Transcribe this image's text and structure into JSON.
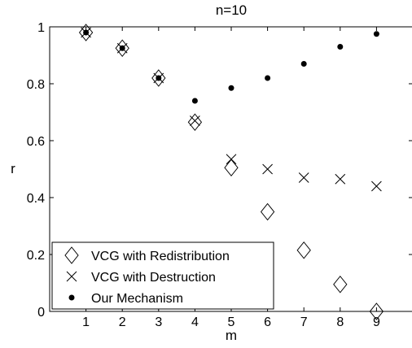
{
  "chart_data": {
    "type": "scatter",
    "title": "n=10",
    "xlabel": "m",
    "ylabel": "r",
    "xlim": [
      0,
      10
    ],
    "ylim": [
      0,
      1
    ],
    "xticks": [
      1,
      2,
      3,
      4,
      5,
      6,
      7,
      8,
      9
    ],
    "yticks": [
      0,
      0.2,
      0.4,
      0.6,
      0.8,
      1
    ],
    "ytick_labels": [
      "0",
      "0.2",
      "0.4",
      "0.6",
      "0.8",
      "1"
    ],
    "grid": false,
    "legend_position": "bottom-left",
    "series": [
      {
        "name": "VCG with Redistribution",
        "marker": "diamond",
        "color": "#000000",
        "x": [
          1,
          2,
          3,
          4,
          5,
          6,
          7,
          8,
          9
        ],
        "y": [
          0.98,
          0.925,
          0.82,
          0.665,
          0.505,
          0.35,
          0.215,
          0.095,
          0.0
        ]
      },
      {
        "name": "VCG with Destruction",
        "marker": "x",
        "color": "#000000",
        "x": [
          1,
          2,
          3,
          4,
          5,
          6,
          7,
          8,
          9
        ],
        "y": [
          0.98,
          0.925,
          0.82,
          0.67,
          0.535,
          0.5,
          0.47,
          0.465,
          0.44
        ]
      },
      {
        "name": "Our Mechanism",
        "marker": "dot",
        "color": "#000000",
        "x": [
          1,
          2,
          3,
          4,
          5,
          6,
          7,
          8,
          9
        ],
        "y": [
          0.98,
          0.925,
          0.82,
          0.74,
          0.785,
          0.82,
          0.87,
          0.93,
          0.975
        ]
      }
    ]
  }
}
